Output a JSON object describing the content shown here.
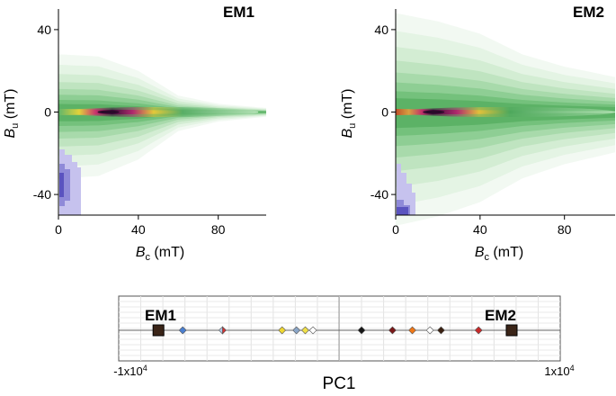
{
  "chart_data": [
    {
      "type": "heatmap",
      "title": "EM1",
      "xlabel": "B",
      "xlabel_sub": "c",
      "xlabel_unit": " (mT)",
      "ylabel": "B",
      "ylabel_sub": "u",
      "ylabel_unit": " (mT)",
      "xlim": [
        0,
        104
      ],
      "ylim": [
        -50,
        50
      ],
      "xticks": [
        0,
        40,
        80
      ],
      "yticks": [
        40,
        0,
        -40
      ],
      "xtick_labels": [
        "0",
        "40",
        "80"
      ],
      "ytick_labels": [
        "40",
        "0",
        "-40"
      ],
      "ridge": {
        "peak_bc": 25,
        "extent_bc": 100
      },
      "envelope_halfwidth_bu": [
        [
          0,
          28
        ],
        [
          20,
          27
        ],
        [
          40,
          20
        ],
        [
          60,
          8
        ],
        [
          80,
          4
        ],
        [
          104,
          2
        ]
      ],
      "blue_histogram": {
        "bc_max": 10,
        "bu_range": [
          -50,
          -18
        ]
      }
    },
    {
      "type": "heatmap",
      "title": "EM2",
      "xlabel": "B",
      "xlabel_sub": "c",
      "xlabel_unit": " (mT)",
      "ylabel": "B",
      "ylabel_sub": "u",
      "ylabel_unit": " (mT)",
      "xlim": [
        0,
        104
      ],
      "ylim": [
        -50,
        50
      ],
      "xticks": [
        0,
        40,
        80
      ],
      "yticks": [
        40,
        0,
        -40
      ],
      "xtick_labels": [
        "0",
        "40",
        "80"
      ],
      "ytick_labels": [
        "40",
        "0",
        "-40"
      ],
      "ridge": {
        "peak_bc": 18,
        "extent_bc": 104
      },
      "envelope_halfwidth_bu": [
        [
          0,
          48
        ],
        [
          20,
          44
        ],
        [
          40,
          38
        ],
        [
          60,
          28
        ],
        [
          80,
          22
        ],
        [
          104,
          17
        ]
      ],
      "blue_histogram": {
        "bc_max": 8,
        "bu_range": [
          -50,
          -25
        ]
      }
    },
    {
      "type": "scatter",
      "title": "PC1",
      "xlim": [
        -10000,
        10000
      ],
      "xtick_labels": [
        "-1x10",
        "1x10"
      ],
      "xtick_exponent": "4",
      "endmembers": [
        {
          "label": "EM1",
          "x": -8200,
          "color": "#3a2417"
        },
        {
          "label": "EM2",
          "x": 7800,
          "color": "#3a2417"
        }
      ],
      "points": [
        {
          "x": -7100,
          "color": "#4a7fd0"
        },
        {
          "x": -5300,
          "color": "#a9c9e8",
          "color2": "#d83232"
        },
        {
          "x": -2600,
          "color": "#f0d832"
        },
        {
          "x": -1950,
          "color": "#8aa6c8"
        },
        {
          "x": -1550,
          "color": "#f0e04a"
        },
        {
          "x": -1200,
          "color": "#ffffff"
        },
        {
          "x": 1000,
          "color": "#151515"
        },
        {
          "x": 2400,
          "color": "#7a1818"
        },
        {
          "x": 3300,
          "color": "#f07818"
        },
        {
          "x": 4100,
          "color": "#ffffff"
        },
        {
          "x": 4600,
          "color": "#3a2010"
        },
        {
          "x": 6300,
          "color": "#c82828"
        }
      ]
    }
  ]
}
